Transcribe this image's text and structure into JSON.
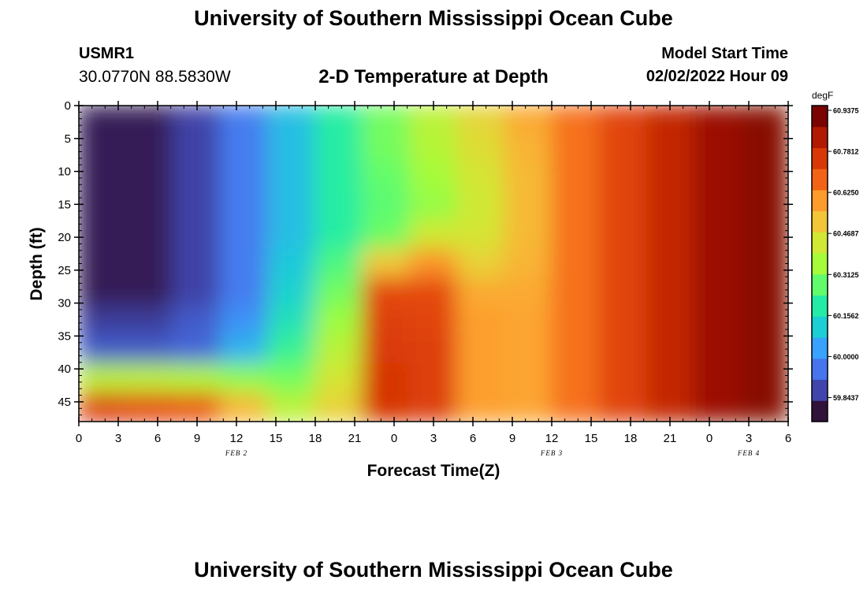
{
  "header": {
    "title": "University of Southern Mississippi Ocean Cube",
    "station_id": "USMR1",
    "coords": "30.0770N  88.5830W",
    "subtitle": "2-D Temperature at Depth",
    "model_label": "Model Start Time",
    "model_time": "02/02/2022 Hour 09"
  },
  "footer": {
    "title": "University of Southern Mississippi Ocean Cube"
  },
  "chart_data": {
    "type": "heatmap",
    "title": "2-D Temperature at Depth",
    "xlabel": "Forecast Time(Z)",
    "ylabel": "Depth (ft)",
    "x_tick_labels": [
      "0",
      "3",
      "6",
      "9",
      "12",
      "15",
      "18",
      "21",
      "0",
      "3",
      "6",
      "9",
      "12",
      "15",
      "18",
      "21",
      "0",
      "3",
      "6"
    ],
    "x_range_hours": [
      0,
      54
    ],
    "day_labels": [
      {
        "label": "FEB 2",
        "hour": 12
      },
      {
        "label": "FEB 3",
        "hour": 36
      },
      {
        "label": "FEB 4",
        "hour": 51
      }
    ],
    "y_tick_labels": [
      "0",
      "5",
      "10",
      "15",
      "20",
      "25",
      "30",
      "35",
      "40",
      "45"
    ],
    "y_range": [
      0,
      48
    ],
    "y_inverted": true,
    "colorbar": {
      "unit": "degF",
      "labels": [
        "60.9375",
        "60.7812",
        "60.6250",
        "60.4687",
        "60.3125",
        "60.1562",
        "60.0000",
        "59.8437"
      ],
      "range": [
        59.78,
        60.94
      ],
      "colors": [
        "#30123b",
        "#4145ab",
        "#4675ed",
        "#39a2fc",
        "#1bcfd4",
        "#24eca6",
        "#61fc6c",
        "#a4fc3b",
        "#d1e834",
        "#f3c63a",
        "#fe9b2d",
        "#f36315",
        "#d93806",
        "#b11901",
        "#7a0402"
      ]
    },
    "temperature_degF": [
      [
        59.8,
        59.8,
        59.86,
        59.96,
        60.08,
        60.2,
        60.3,
        60.4,
        60.49,
        60.58,
        60.67,
        60.75,
        60.82,
        60.89,
        60.92
      ],
      [
        59.8,
        59.8,
        59.86,
        59.96,
        60.08,
        60.2,
        60.3,
        60.39,
        60.47,
        60.56,
        60.67,
        60.75,
        60.82,
        60.89,
        60.92
      ],
      [
        59.8,
        59.8,
        59.86,
        59.96,
        60.08,
        60.2,
        60.28,
        60.36,
        60.45,
        60.55,
        60.67,
        60.75,
        60.82,
        60.89,
        60.92
      ],
      [
        59.8,
        59.8,
        59.86,
        59.96,
        60.08,
        60.2,
        60.27,
        60.34,
        60.44,
        60.55,
        60.67,
        60.75,
        60.82,
        60.89,
        60.92
      ],
      [
        59.8,
        59.8,
        59.86,
        59.96,
        60.08,
        60.2,
        60.29,
        60.44,
        60.45,
        60.55,
        60.67,
        60.75,
        60.82,
        60.89,
        60.92
      ],
      [
        59.8,
        59.8,
        59.86,
        59.96,
        60.1,
        60.25,
        60.52,
        60.62,
        60.5,
        60.56,
        60.67,
        60.75,
        60.82,
        60.89,
        60.92
      ],
      [
        59.8,
        59.8,
        59.86,
        59.96,
        60.12,
        60.3,
        60.74,
        60.74,
        60.58,
        60.58,
        60.67,
        60.75,
        60.82,
        60.89,
        60.92
      ],
      [
        59.85,
        59.85,
        59.9,
        60.0,
        60.16,
        60.35,
        60.76,
        60.75,
        60.6,
        60.59,
        60.67,
        60.75,
        60.82,
        60.89,
        60.92
      ],
      [
        59.9,
        59.9,
        59.92,
        60.06,
        60.22,
        60.4,
        60.77,
        60.76,
        60.6,
        60.59,
        60.67,
        60.75,
        60.82,
        60.89,
        60.92
      ],
      [
        60.4,
        60.4,
        60.38,
        60.33,
        60.3,
        60.45,
        60.78,
        60.76,
        60.6,
        60.59,
        60.67,
        60.75,
        60.82,
        60.89,
        60.92
      ],
      [
        60.76,
        60.74,
        60.72,
        60.55,
        60.4,
        60.5,
        60.78,
        60.76,
        60.6,
        60.59,
        60.67,
        60.75,
        60.82,
        60.89,
        60.92
      ]
    ]
  }
}
